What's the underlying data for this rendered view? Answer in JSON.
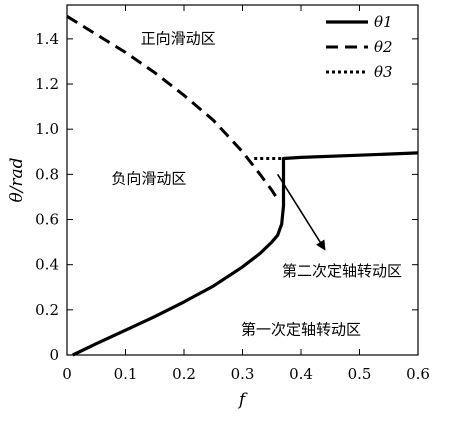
{
  "chart_data": {
    "type": "line",
    "xlabel": "f",
    "ylabel": "θ/rad",
    "xlim": [
      0,
      0.6
    ],
    "ylim": [
      0,
      1.55
    ],
    "x_ticks": [
      0,
      0.1,
      0.2,
      0.3,
      0.4,
      0.5,
      0.6
    ],
    "x_tick_labels": [
      "0",
      "0.1",
      "0.2",
      "0.3",
      "0.4",
      "0.5",
      "0.6"
    ],
    "y_ticks": [
      0,
      0.2,
      0.4,
      0.6,
      0.8,
      1.0,
      1.2,
      1.4
    ],
    "y_tick_labels": [
      "0",
      "0.2",
      "0.4",
      "0.6",
      "0.8",
      "1.0",
      "1.2",
      "1.4"
    ],
    "grid": false,
    "legend_position": "top-right",
    "series": [
      {
        "name": "θ1",
        "style": "solid",
        "color": "#000000",
        "points": [
          [
            0.01,
            0.0
          ],
          [
            0.05,
            0.05
          ],
          [
            0.1,
            0.11
          ],
          [
            0.15,
            0.17
          ],
          [
            0.2,
            0.235
          ],
          [
            0.25,
            0.305
          ],
          [
            0.3,
            0.39
          ],
          [
            0.33,
            0.45
          ],
          [
            0.35,
            0.5
          ],
          [
            0.36,
            0.53
          ],
          [
            0.367,
            0.58
          ],
          [
            0.37,
            0.66
          ],
          [
            0.37,
            0.73
          ],
          [
            0.37,
            0.8
          ],
          [
            0.37,
            0.87
          ],
          [
            0.4,
            0.875
          ],
          [
            0.5,
            0.885
          ],
          [
            0.6,
            0.895
          ]
        ]
      },
      {
        "name": "θ2",
        "style": "dashed",
        "color": "#000000",
        "points": [
          [
            0.0,
            1.5
          ],
          [
            0.05,
            1.42
          ],
          [
            0.1,
            1.34
          ],
          [
            0.15,
            1.25
          ],
          [
            0.2,
            1.15
          ],
          [
            0.25,
            1.04
          ],
          [
            0.3,
            0.9
          ],
          [
            0.33,
            0.8
          ],
          [
            0.35,
            0.73
          ],
          [
            0.36,
            0.69
          ]
        ]
      },
      {
        "name": "θ3",
        "style": "dotted",
        "color": "#000000",
        "points": [
          [
            0.32,
            0.87
          ],
          [
            0.37,
            0.87
          ]
        ]
      }
    ],
    "regions": [
      {
        "label": "正向滑动区",
        "x": 0.19,
        "y": 1.38
      },
      {
        "label": "负向滑动区",
        "x": 0.14,
        "y": 0.76
      },
      {
        "label": "第二次定轴转动区",
        "x": 0.47,
        "y": 0.35
      },
      {
        "label": "第一次定轴转动区",
        "x": 0.4,
        "y": 0.09
      }
    ],
    "arrow": {
      "from": [
        0.36,
        0.8
      ],
      "to": [
        0.44,
        0.47
      ]
    }
  }
}
